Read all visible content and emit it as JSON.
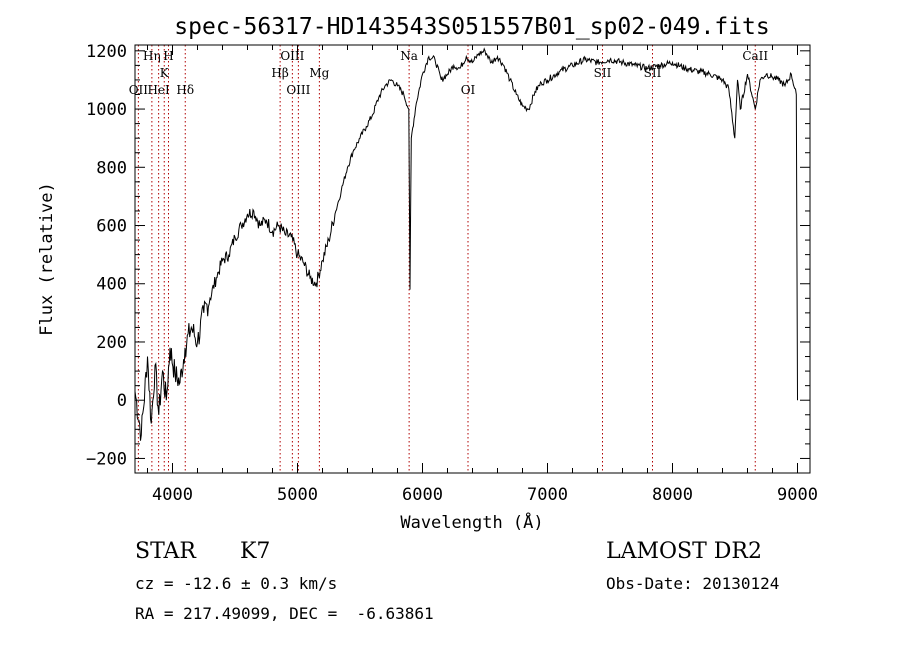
{
  "chart_data": {
    "type": "line",
    "title": "spec-56317-HD143543S051557B01_sp02-049.fits",
    "xlabel": "Wavelength (Å)",
    "ylabel": "Flux (relative)",
    "xlim": [
      3700,
      9100
    ],
    "ylim": [
      -250,
      1220
    ],
    "x_ticks": [
      4000,
      5000,
      6000,
      7000,
      8000,
      9000
    ],
    "y_ticks": [
      -200,
      0,
      200,
      400,
      600,
      800,
      1000,
      1200
    ],
    "grid": false,
    "series": [
      {
        "x": [
          3700,
          3750,
          3800,
          3830,
          3860,
          3890,
          3920,
          3950,
          3980,
          4020,
          4060,
          4100,
          4150,
          4200,
          4250,
          4300,
          4350,
          4400,
          4450,
          4500,
          4550,
          4600,
          4650,
          4700,
          4750,
          4800,
          4850,
          4900,
          4950,
          5000,
          5050,
          5100,
          5150,
          5200,
          5250,
          5300,
          5350,
          5400,
          5450,
          5500,
          5550,
          5600,
          5650,
          5700,
          5750,
          5800,
          5850,
          5890,
          5900,
          5910,
          5950,
          6000,
          6050,
          6100,
          6150,
          6200,
          6250,
          6300,
          6350,
          6400,
          6450,
          6500,
          6550,
          6600,
          6650,
          6700,
          6750,
          6800,
          6850,
          6900,
          6950,
          7000,
          7100,
          7200,
          7300,
          7400,
          7500,
          7600,
          7700,
          7800,
          7900,
          8000,
          8100,
          8200,
          8300,
          8400,
          8450,
          8498,
          8520,
          8542,
          8600,
          8662,
          8700,
          8750,
          8800,
          8850,
          8900,
          8950,
          8990,
          9000
        ],
        "y": [
          30,
          -120,
          150,
          -80,
          120,
          -50,
          100,
          0,
          180,
          90,
          60,
          180,
          250,
          200,
          300,
          350,
          420,
          480,
          500,
          560,
          600,
          640,
          650,
          600,
          620,
          580,
          600,
          570,
          560,
          500,
          470,
          420,
          400,
          480,
          550,
          640,
          720,
          800,
          860,
          900,
          940,
          980,
          1040,
          1080,
          1100,
          1080,
          1050,
          1000,
          380,
          900,
          1020,
          1120,
          1180,
          1170,
          1100,
          1120,
          1150,
          1140,
          1180,
          1160,
          1190,
          1200,
          1160,
          1180,
          1150,
          1100,
          1050,
          1010,
          1000,
          1060,
          1090,
          1100,
          1130,
          1150,
          1170,
          1160,
          1170,
          1160,
          1150,
          1140,
          1150,
          1160,
          1140,
          1130,
          1120,
          1100,
          1070,
          900,
          1100,
          1000,
          1120,
          1000,
          1100,
          1120,
          1110,
          1100,
          1080,
          1120,
          1050,
          0
        ]
      }
    ],
    "line_markers": [
      {
        "wl": 3727,
        "label": "OII",
        "row": 3
      },
      {
        "wl": 3835,
        "label": "Hη",
        "row": 0
      },
      {
        "wl": 3889,
        "label": "HeI",
        "row": 3
      },
      {
        "wl": 3934,
        "label": "K",
        "row": 1
      },
      {
        "wl": 3968,
        "label": "H",
        "row": 0
      },
      {
        "wl": 4102,
        "label": "Hδ",
        "row": 3
      },
      {
        "wl": 4861,
        "label": "Hβ",
        "row": 2
      },
      {
        "wl": 4959,
        "label": "OIII",
        "row": 0
      },
      {
        "wl": 5007,
        "label": "OIII",
        "row": 4
      },
      {
        "wl": 5175,
        "label": "Mg",
        "row": 2
      },
      {
        "wl": 5893,
        "label": "Na",
        "row": 0
      },
      {
        "wl": 6364,
        "label": "OI",
        "row": 3
      },
      {
        "wl": 7440,
        "label": "SII",
        "row": 2
      },
      {
        "wl": 7840,
        "label": "SII",
        "row": 2
      },
      {
        "wl": 8662,
        "label": "CaII",
        "row": 0
      }
    ]
  },
  "info": {
    "class": "STAR",
    "subclass": "K7",
    "survey": "LAMOST DR2",
    "cz": "cz = -12.6 ± 0.3 km/s",
    "obs_date": "Obs-Date: 20130124",
    "radec": "RA = 217.49099, DEC =  -6.63861"
  }
}
